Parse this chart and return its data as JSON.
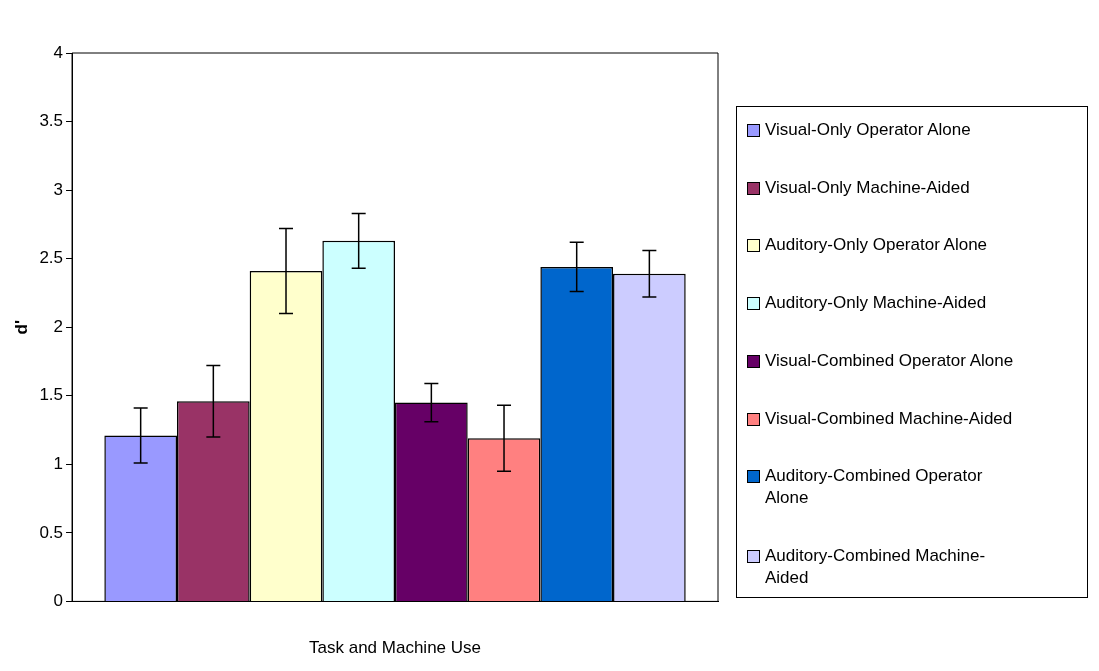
{
  "chart_data": {
    "type": "bar",
    "xlabel": "Task and Machine Use",
    "ylabel": "d'",
    "categories": [
      null
    ],
    "series": [
      {
        "name": "Visual-Only Operator Alone",
        "color": "#9999ff",
        "values": [
          1.21
        ],
        "errors": [
          0.2
        ]
      },
      {
        "name": "Visual-Only Machine-Aided",
        "color": "#993366",
        "values": [
          1.46
        ],
        "errors": [
          0.26
        ]
      },
      {
        "name": "Auditory-Only Operator Alone",
        "color": "#ffffcc",
        "values": [
          2.41
        ],
        "errors": [
          0.31
        ]
      },
      {
        "name": "Auditory-Only Machine-Aided",
        "color": "#ccffff",
        "values": [
          2.63
        ],
        "errors": [
          0.2
        ]
      },
      {
        "name": "Visual-Combined Operator Alone",
        "color": "#660066",
        "values": [
          1.45
        ],
        "errors": [
          0.14
        ]
      },
      {
        "name": "Visual-Combined Machine-Aided",
        "color": "#ff8080",
        "values": [
          1.19
        ],
        "errors": [
          0.24
        ]
      },
      {
        "name": "Auditory-Combined Operator Alone",
        "color": "#0066cc",
        "values": [
          2.44
        ],
        "errors": [
          0.18
        ]
      },
      {
        "name": "Auditory-Combined Machine-Aided",
        "color": "#ccccff",
        "values": [
          2.39
        ],
        "errors": [
          0.17
        ]
      }
    ],
    "ylim": [
      0,
      4
    ],
    "yticks": [
      0,
      0.5,
      1,
      1.5,
      2,
      2.5,
      3,
      3.5,
      4
    ],
    "grid": false,
    "legend": "right"
  }
}
